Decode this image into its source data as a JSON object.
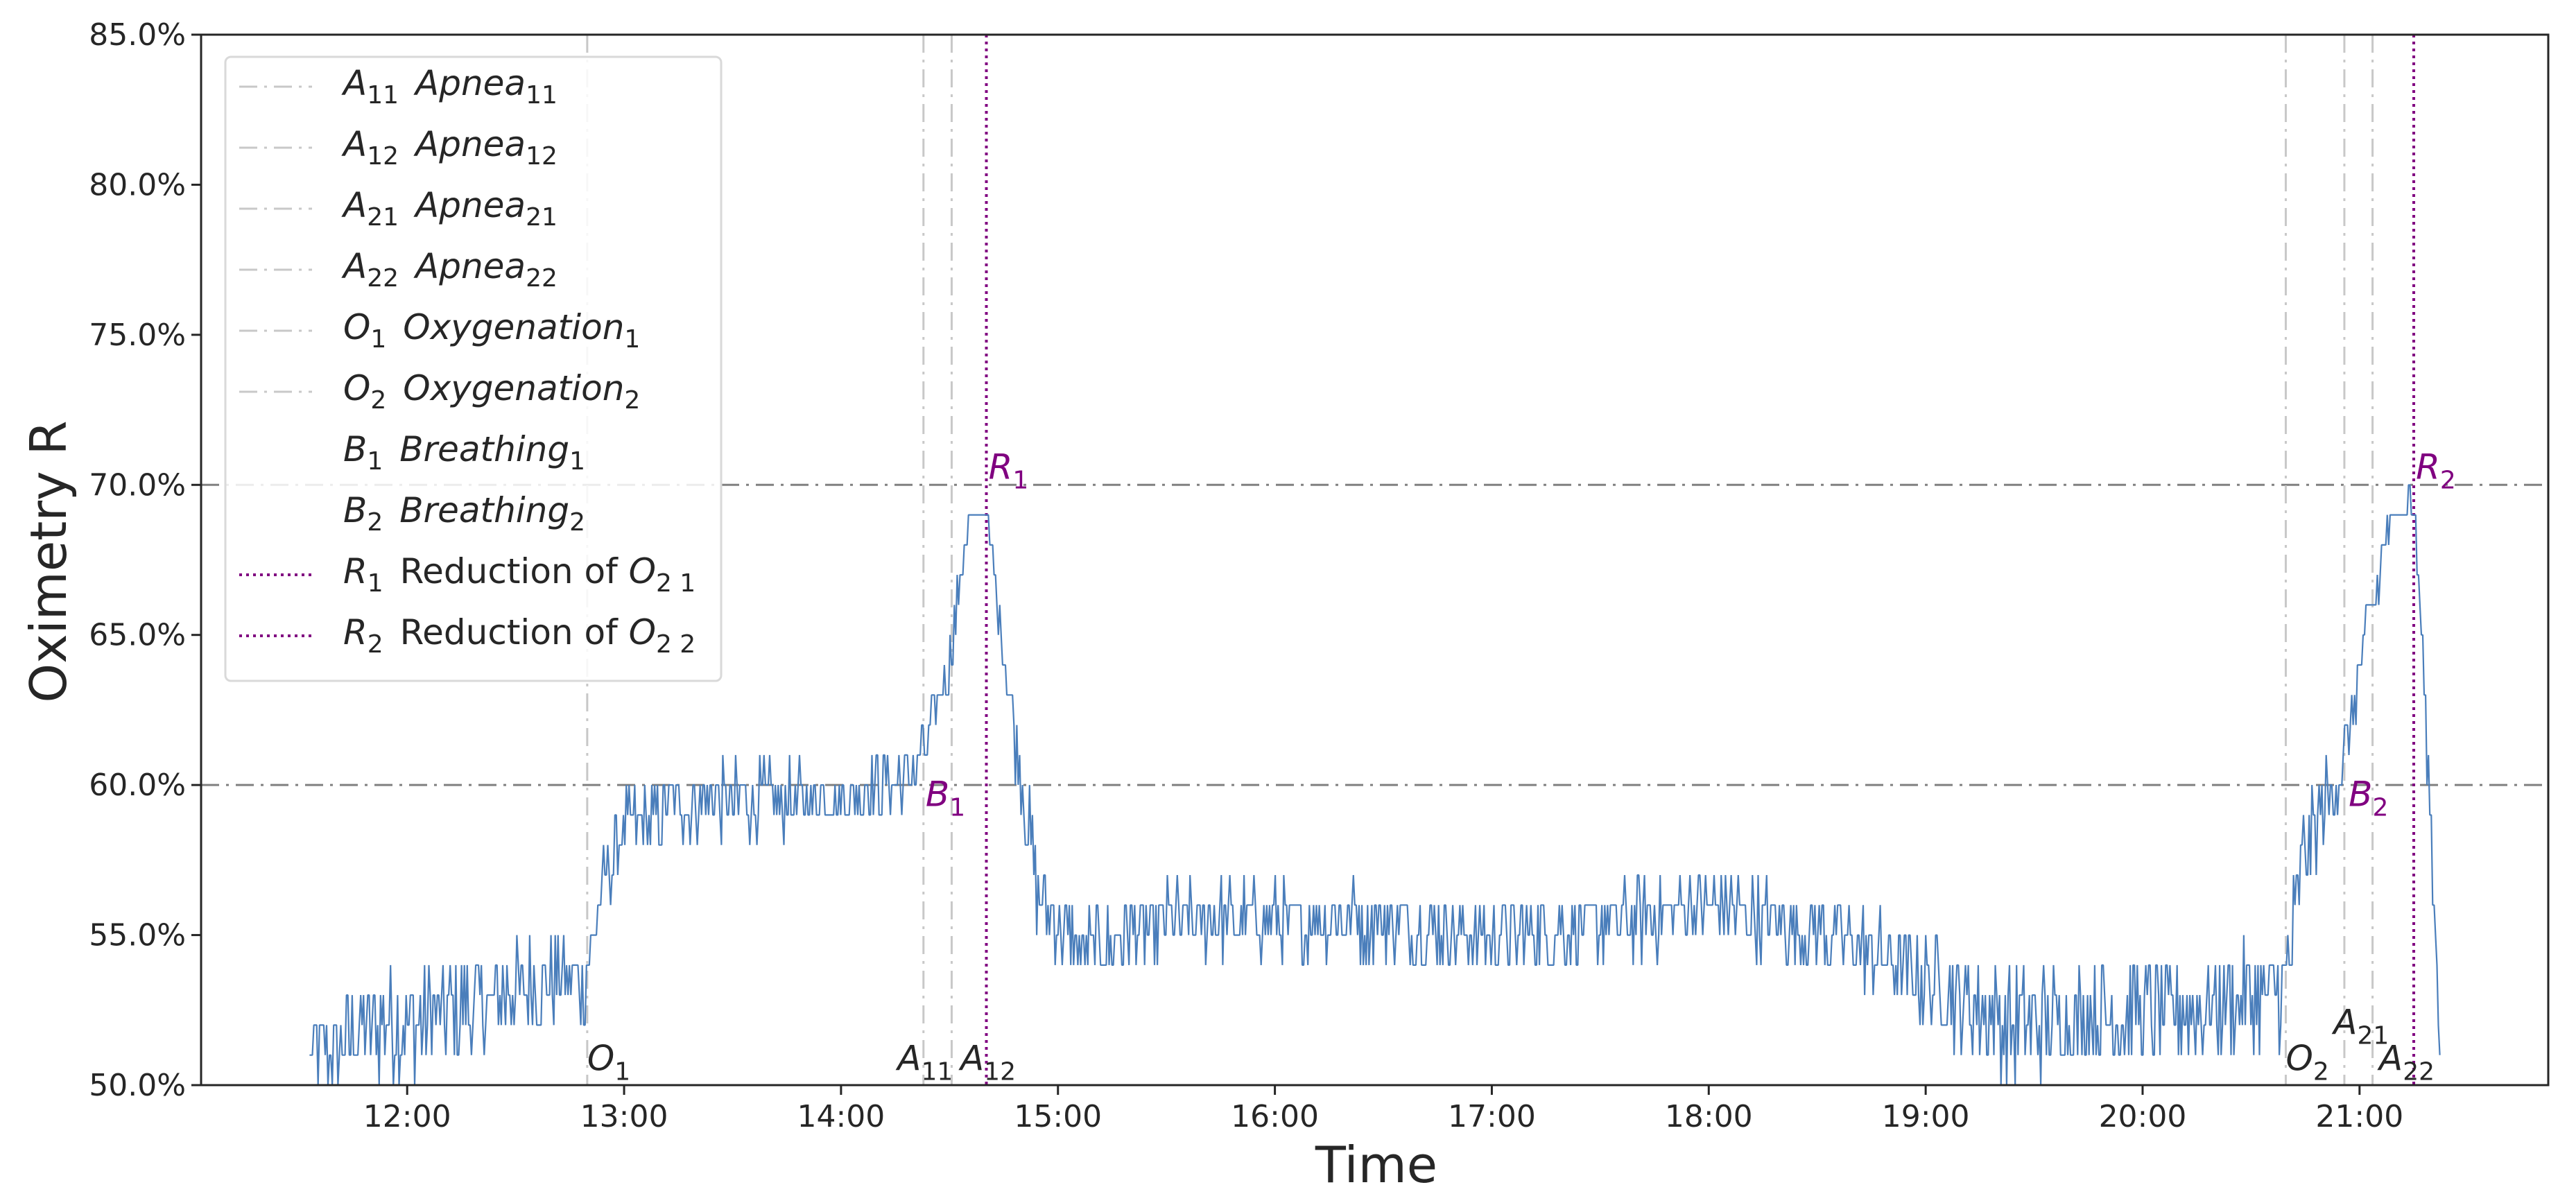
{
  "chart_data": {
    "type": "line",
    "xlabel": "Time",
    "ylabel": "Oximetry R",
    "ylim": [
      0.5,
      0.85
    ],
    "xlim_hours": [
      11.05,
      21.87
    ],
    "y_ticks": [
      {
        "value": 0.5,
        "label": "50.0%"
      },
      {
        "value": 0.55,
        "label": "55.0%"
      },
      {
        "value": 0.6,
        "label": "60.0%"
      },
      {
        "value": 0.65,
        "label": "65.0%"
      },
      {
        "value": 0.7,
        "label": "70.0%"
      },
      {
        "value": 0.75,
        "label": "75.0%"
      },
      {
        "value": 0.8,
        "label": "80.0%"
      },
      {
        "value": 0.85,
        "label": "85.0%"
      }
    ],
    "x_ticks": [
      {
        "value": 12,
        "label": "12:00"
      },
      {
        "value": 13,
        "label": "13:00"
      },
      {
        "value": 14,
        "label": "14:00"
      },
      {
        "value": 15,
        "label": "15:00"
      },
      {
        "value": 16,
        "label": "16:00"
      },
      {
        "value": 17,
        "label": "17:00"
      },
      {
        "value": 18,
        "label": "18:00"
      },
      {
        "value": 19,
        "label": "19:00"
      },
      {
        "value": 20,
        "label": "20:00"
      },
      {
        "value": 21,
        "label": "21:00"
      }
    ],
    "thresholds": [
      0.6,
      0.7
    ],
    "series": [
      {
        "name": "Oximetry R",
        "color": "#4a7ebb",
        "start_hour": 11.55,
        "end_hour": 21.37,
        "profile": [
          {
            "t": 11.55,
            "v": 0.51,
            "spread": 0.012
          },
          {
            "t": 11.9,
            "v": 0.52,
            "spread": 0.018
          },
          {
            "t": 12.3,
            "v": 0.525,
            "spread": 0.018
          },
          {
            "t": 12.6,
            "v": 0.535,
            "spread": 0.017
          },
          {
            "t": 12.82,
            "v": 0.535,
            "spread": 0.015
          },
          {
            "t": 12.9,
            "v": 0.565,
            "spread": 0.012
          },
          {
            "t": 13.0,
            "v": 0.585,
            "spread": 0.012
          },
          {
            "t": 13.3,
            "v": 0.595,
            "spread": 0.012
          },
          {
            "t": 14.0,
            "v": 0.595,
            "spread": 0.01
          },
          {
            "t": 14.35,
            "v": 0.605,
            "spread": 0.01
          },
          {
            "t": 14.5,
            "v": 0.64,
            "spread": 0.01
          },
          {
            "t": 14.58,
            "v": 0.685,
            "spread": 0.005
          },
          {
            "t": 14.67,
            "v": 0.69,
            "spread": 0.003
          },
          {
            "t": 14.78,
            "v": 0.63,
            "spread": 0.012
          },
          {
            "t": 14.9,
            "v": 0.565,
            "spread": 0.015
          },
          {
            "t": 15.1,
            "v": 0.545,
            "spread": 0.012
          },
          {
            "t": 15.5,
            "v": 0.555,
            "spread": 0.012
          },
          {
            "t": 16.5,
            "v": 0.555,
            "spread": 0.012
          },
          {
            "t": 17.0,
            "v": 0.55,
            "spread": 0.012
          },
          {
            "t": 17.7,
            "v": 0.555,
            "spread": 0.012
          },
          {
            "t": 18.0,
            "v": 0.56,
            "spread": 0.012
          },
          {
            "t": 18.6,
            "v": 0.55,
            "spread": 0.012
          },
          {
            "t": 19.0,
            "v": 0.535,
            "spread": 0.015
          },
          {
            "t": 19.4,
            "v": 0.52,
            "spread": 0.018
          },
          {
            "t": 20.0,
            "v": 0.525,
            "spread": 0.018
          },
          {
            "t": 20.65,
            "v": 0.53,
            "spread": 0.016
          },
          {
            "t": 20.75,
            "v": 0.58,
            "spread": 0.015
          },
          {
            "t": 20.92,
            "v": 0.605,
            "spread": 0.012
          },
          {
            "t": 21.05,
            "v": 0.655,
            "spread": 0.01
          },
          {
            "t": 21.15,
            "v": 0.69,
            "spread": 0.006
          },
          {
            "t": 21.25,
            "v": 0.695,
            "spread": 0.004
          },
          {
            "t": 21.3,
            "v": 0.63,
            "spread": 0.012
          },
          {
            "t": 21.37,
            "v": 0.52,
            "spread": 0.01
          }
        ]
      }
    ],
    "event_lines": [
      {
        "key": "O1",
        "time": 12.83,
        "style": "dashdot"
      },
      {
        "key": "A11",
        "time": 14.38,
        "style": "dashdot"
      },
      {
        "key": "A12",
        "time": 14.51,
        "style": "dashdot"
      },
      {
        "key": "R1",
        "time": 14.67,
        "style": "dotted"
      },
      {
        "key": "O2",
        "time": 20.66,
        "style": "dashdot"
      },
      {
        "key": "A21",
        "time": 20.93,
        "style": "dashdot"
      },
      {
        "key": "A22",
        "time": 21.06,
        "style": "dashdot"
      },
      {
        "key": "R2",
        "time": 21.25,
        "style": "dotted"
      }
    ],
    "annotations": [
      {
        "base": "O",
        "sub": "1",
        "time": 12.83,
        "value": 0.505,
        "color": "#262626"
      },
      {
        "base": "A",
        "sub": "11",
        "time": 14.26,
        "value": 0.505,
        "color": "#262626"
      },
      {
        "base": "A",
        "sub": "12",
        "time": 14.55,
        "value": 0.505,
        "color": "#262626"
      },
      {
        "base": "O",
        "sub": "2",
        "time": 20.66,
        "value": 0.505,
        "color": "#262626"
      },
      {
        "base": "A",
        "sub": "21",
        "time": 20.88,
        "value": 0.517,
        "color": "#262626"
      },
      {
        "base": "A",
        "sub": "22",
        "time": 21.09,
        "value": 0.505,
        "color": "#262626"
      },
      {
        "base": "B",
        "sub": "1",
        "time": 14.39,
        "value": 0.593,
        "color": "#800080"
      },
      {
        "base": "B",
        "sub": "2",
        "time": 20.95,
        "value": 0.593,
        "color": "#800080"
      },
      {
        "base": "R",
        "sub": "1",
        "time": 14.68,
        "value": 0.702,
        "color": "#800080"
      },
      {
        "base": "R",
        "sub": "2",
        "time": 21.26,
        "value": 0.702,
        "color": "#800080"
      }
    ],
    "legend": {
      "position": "upper-left",
      "entries": [
        {
          "base": "A",
          "sub": "11",
          "word": "Apnea",
          "word_sub": "11",
          "style": "dashdot"
        },
        {
          "base": "A",
          "sub": "12",
          "word": "Apnea",
          "word_sub": "12",
          "style": "dashdot"
        },
        {
          "base": "A",
          "sub": "21",
          "word": "Apnea",
          "word_sub": "21",
          "style": "dashdot"
        },
        {
          "base": "A",
          "sub": "22",
          "word": "Apnea",
          "word_sub": "22",
          "style": "dashdot"
        },
        {
          "base": "O",
          "sub": "1",
          "word": "Oxygenation",
          "word_sub": "1",
          "style": "dashdot"
        },
        {
          "base": "O",
          "sub": "2",
          "word": "Oxygenation",
          "word_sub": "2",
          "style": "dashdot"
        },
        {
          "base": "B",
          "sub": "1",
          "word": "Breathing",
          "word_sub": "1",
          "style": "none"
        },
        {
          "base": "B",
          "sub": "2",
          "word": "Breathing",
          "word_sub": "2",
          "style": "none"
        },
        {
          "base": "R",
          "sub": "1",
          "prefix": "Reduction of",
          "word": "O",
          "word_sub": "2 1",
          "style": "dotted"
        },
        {
          "base": "R",
          "sub": "2",
          "prefix": "Reduction of",
          "word": "O",
          "word_sub": "2 2",
          "style": "dotted"
        }
      ]
    },
    "colors": {
      "series": "#4a7ebb",
      "threshold": "#808080",
      "event_line": "#c8c8c8",
      "reduction": "#800080"
    }
  }
}
